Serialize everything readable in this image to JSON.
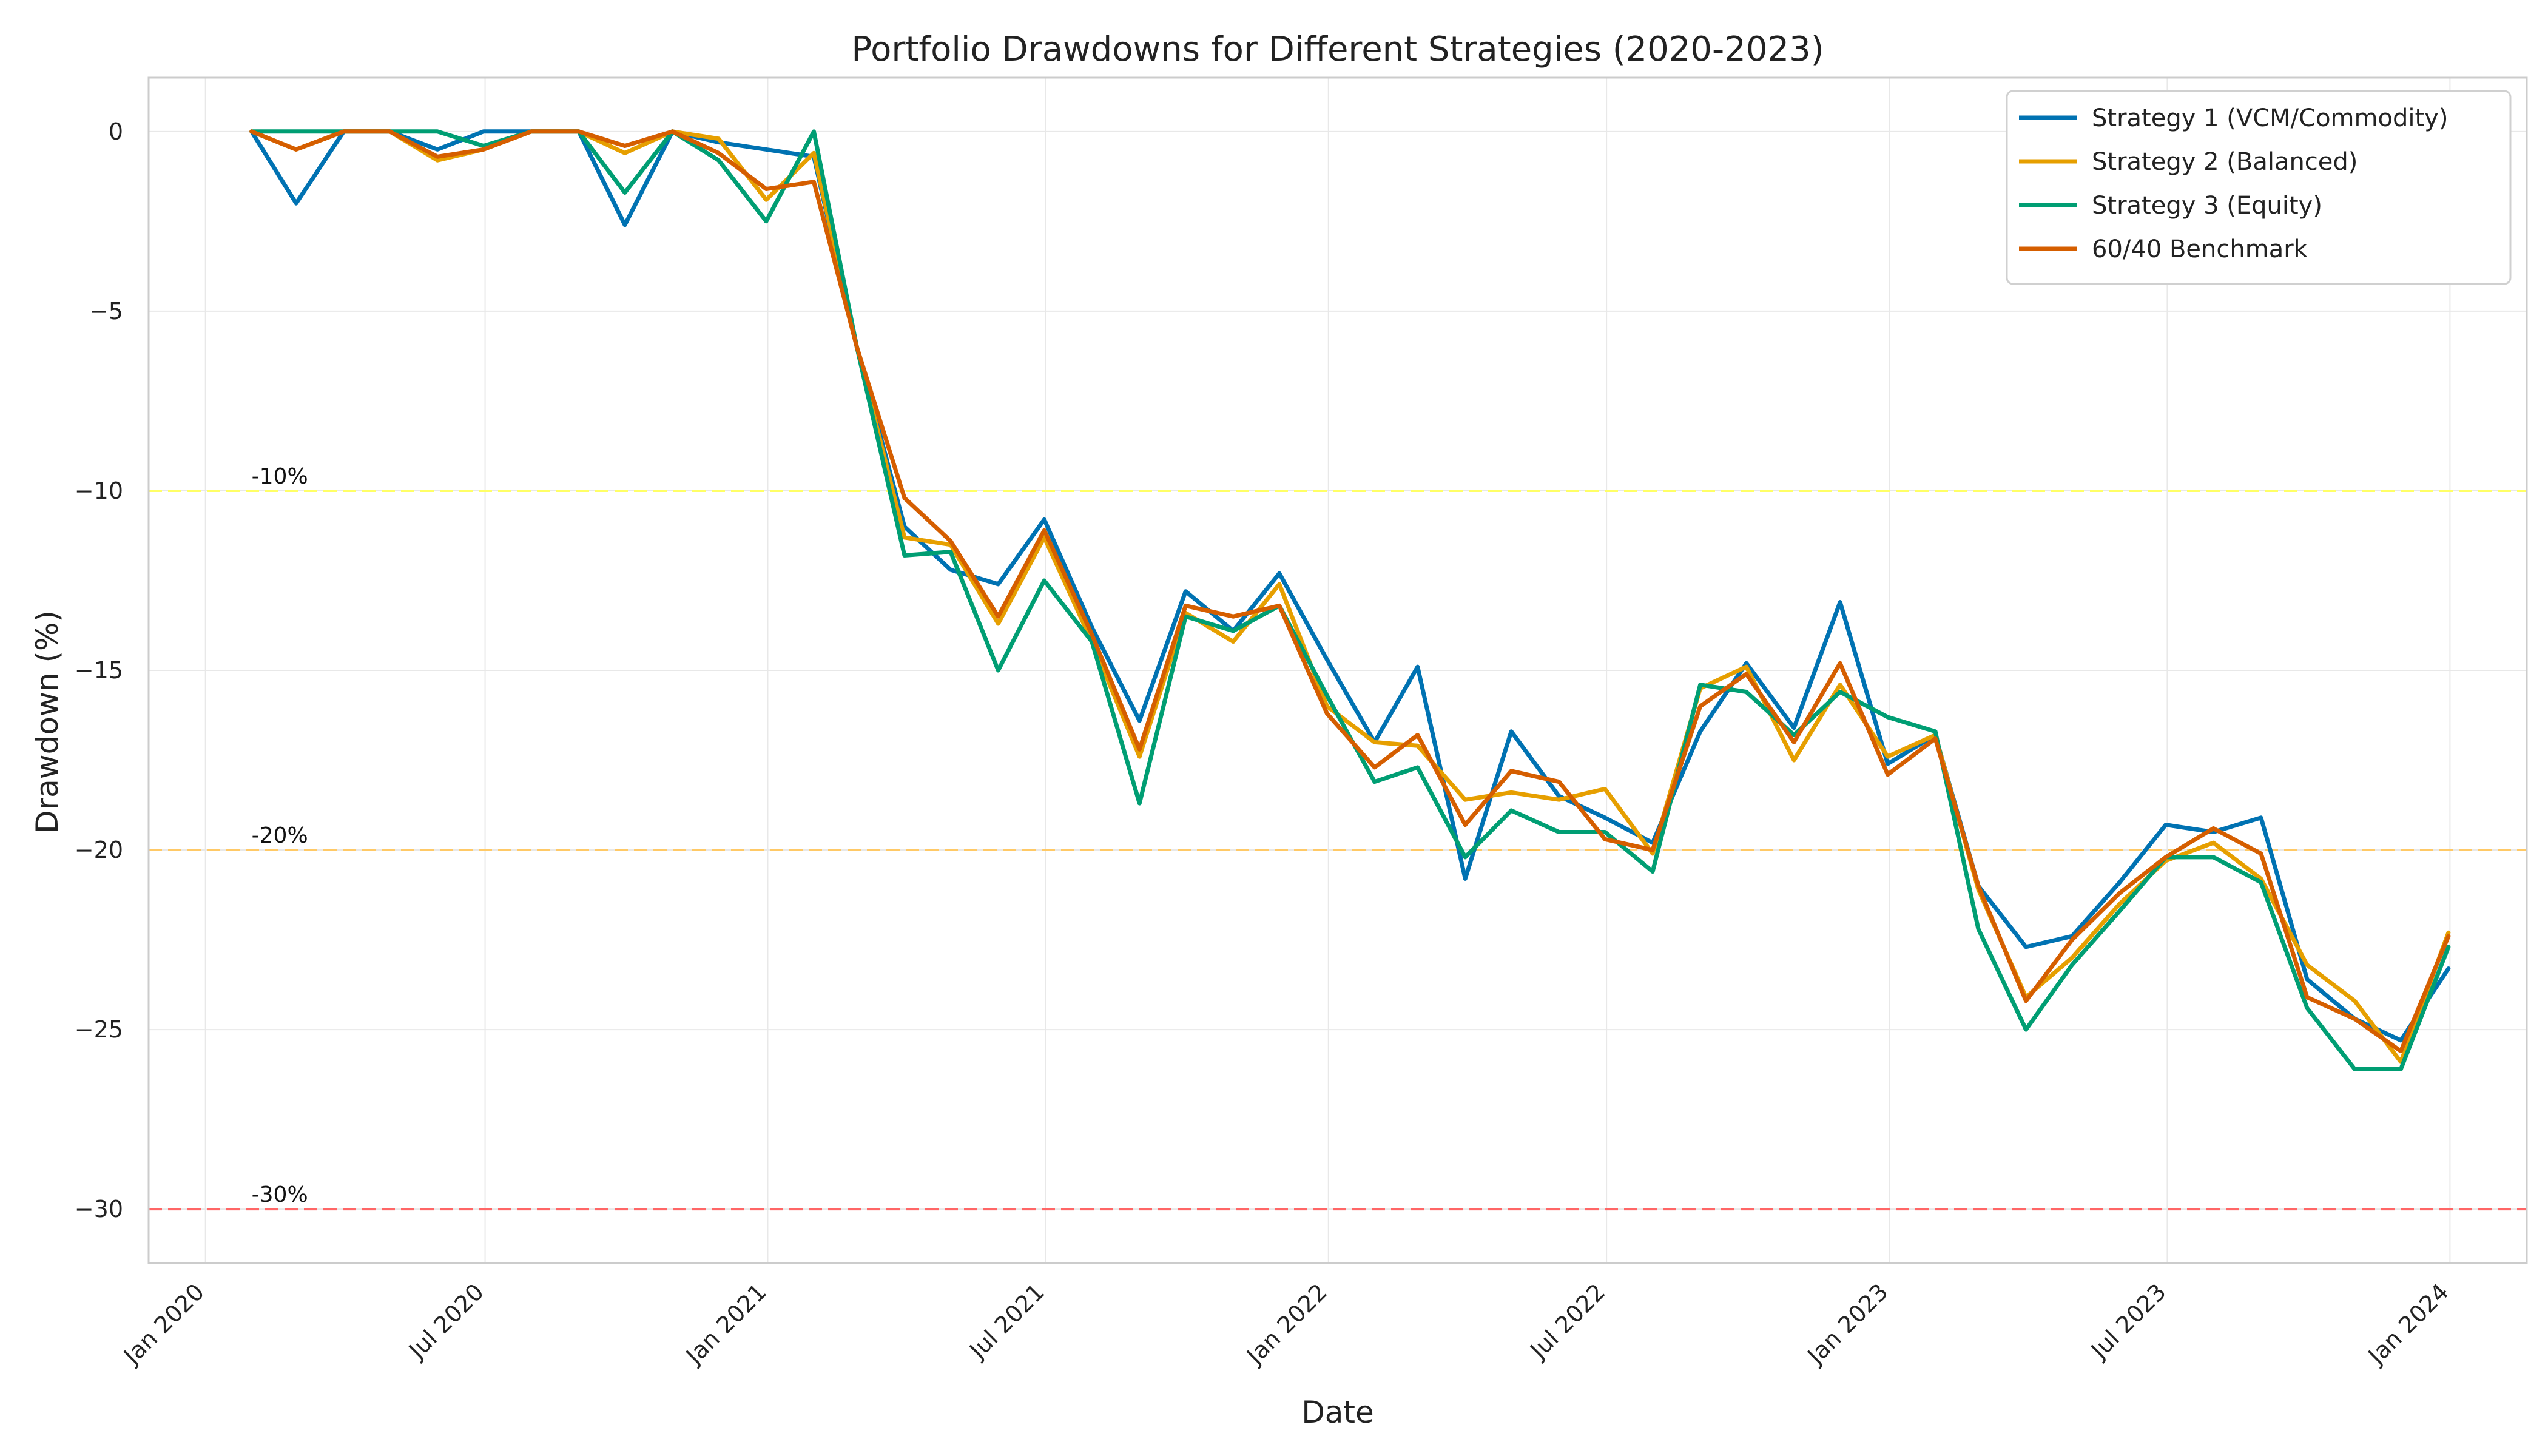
{
  "chart_data": {
    "type": "line",
    "title": "Portfolio Drawdowns for Different Strategies (2020-2023)",
    "xlabel": "Date",
    "ylabel": "Drawdown (%)",
    "x": [
      "2020-01-31",
      "2020-02-29",
      "2020-03-31",
      "2020-04-30",
      "2020-05-31",
      "2020-06-30",
      "2020-07-31",
      "2020-08-31",
      "2020-09-30",
      "2020-10-31",
      "2020-11-30",
      "2020-12-31",
      "2021-01-31",
      "2021-02-28",
      "2021-03-31",
      "2021-04-30",
      "2021-05-31",
      "2021-06-30",
      "2021-07-31",
      "2021-08-31",
      "2021-09-30",
      "2021-10-31",
      "2021-11-30",
      "2021-12-31",
      "2022-01-31",
      "2022-02-28",
      "2022-03-31",
      "2022-04-30",
      "2022-05-31",
      "2022-06-30",
      "2022-07-31",
      "2022-08-31",
      "2022-09-30",
      "2022-10-31",
      "2022-11-30",
      "2022-12-31",
      "2023-01-31",
      "2023-02-28",
      "2023-03-31",
      "2023-04-30",
      "2023-05-31",
      "2023-06-30",
      "2023-07-31",
      "2023-08-31",
      "2023-09-30",
      "2023-10-31",
      "2023-11-30",
      "2023-12-31"
    ],
    "series": [
      {
        "name": "Strategy 1 (VCM/Commodity)",
        "color": "#0072B2",
        "values": [
          0,
          -2.0,
          0,
          0,
          -0.5,
          0,
          0,
          0,
          -2.6,
          0,
          -0.3,
          -0.5,
          -0.7,
          -6.0,
          -11.0,
          -12.2,
          -12.6,
          -10.8,
          -13.8,
          -16.4,
          -12.8,
          -13.9,
          -12.3,
          -14.7,
          -17.0,
          -14.9,
          -20.8,
          -16.7,
          -18.5,
          -19.1,
          -19.8,
          -16.7,
          -14.8,
          -16.6,
          -13.1,
          -17.6,
          -16.8,
          -21.0,
          -22.7,
          -22.4,
          -20.9,
          -19.3,
          -19.5,
          -19.1,
          -23.6,
          -24.7,
          -25.3,
          -23.3
        ]
      },
      {
        "name": "Strategy 2 (Balanced)",
        "color": "#E69F00",
        "values": [
          0,
          -0.5,
          0,
          0,
          -0.8,
          -0.5,
          0,
          0,
          -0.6,
          0,
          -0.2,
          -1.9,
          -0.6,
          -6.0,
          -11.3,
          -11.5,
          -13.7,
          -11.3,
          -14.2,
          -17.4,
          -13.4,
          -14.2,
          -12.6,
          -16.0,
          -17.0,
          -17.1,
          -18.6,
          -18.4,
          -18.6,
          -18.3,
          -20.1,
          -15.5,
          -14.9,
          -17.5,
          -15.4,
          -17.4,
          -16.8,
          -21.1,
          -24.1,
          -23.0,
          -21.5,
          -20.3,
          -19.8,
          -20.8,
          -23.2,
          -24.2,
          -25.9,
          -22.3
        ]
      },
      {
        "name": "Strategy 3 (Equity)",
        "color": "#009E73",
        "values": [
          0,
          0,
          0,
          0,
          0,
          -0.4,
          0,
          0,
          -1.7,
          0,
          -0.8,
          -2.5,
          0,
          -6.0,
          -11.8,
          -11.7,
          -15.0,
          -12.5,
          -14.2,
          -18.7,
          -13.5,
          -13.9,
          -13.2,
          -15.7,
          -18.1,
          -17.7,
          -20.2,
          -18.9,
          -19.5,
          -19.5,
          -20.6,
          -15.4,
          -15.6,
          -16.8,
          -15.6,
          -16.3,
          -16.7,
          -22.2,
          -25.0,
          -23.2,
          -21.7,
          -20.2,
          -20.2,
          -20.9,
          -24.4,
          -26.1,
          -26.1,
          -22.7
        ]
      },
      {
        "name": "60/40 Benchmark",
        "color": "#D55E00",
        "values": [
          0,
          -0.5,
          0,
          0,
          -0.7,
          -0.5,
          0,
          0,
          -0.4,
          0,
          -0.6,
          -1.6,
          -1.4,
          -6.0,
          -10.2,
          -11.4,
          -13.5,
          -11.1,
          -14.0,
          -17.2,
          -13.2,
          -13.5,
          -13.2,
          -16.2,
          -17.7,
          -16.8,
          -19.3,
          -17.8,
          -18.1,
          -19.7,
          -20.0,
          -16.0,
          -15.1,
          -17.0,
          -14.8,
          -17.9,
          -16.9,
          -21.0,
          -24.2,
          -22.5,
          -21.2,
          -20.2,
          -19.4,
          -20.1,
          -24.1,
          -24.7,
          -25.6,
          -22.4
        ]
      }
    ],
    "reference_lines": [
      {
        "y": -10,
        "label": "-10%",
        "color": "#FFFF66"
      },
      {
        "y": -20,
        "label": "-20%",
        "color": "#FFC966"
      },
      {
        "y": -30,
        "label": "-30%",
        "color": "#FF6666"
      }
    ],
    "x_ticks": [
      {
        "date": "2020-01-01",
        "label": "Jan 2020"
      },
      {
        "date": "2020-07-01",
        "label": "Jul 2020"
      },
      {
        "date": "2021-01-01",
        "label": "Jan 2021"
      },
      {
        "date": "2021-07-01",
        "label": "Jul 2021"
      },
      {
        "date": "2022-01-01",
        "label": "Jan 2022"
      },
      {
        "date": "2022-07-01",
        "label": "Jul 2022"
      },
      {
        "date": "2023-01-01",
        "label": "Jan 2023"
      },
      {
        "date": "2023-07-01",
        "label": "Jul 2023"
      },
      {
        "date": "2024-01-01",
        "label": "Jan 2024"
      }
    ],
    "y_ticks": [
      0,
      -5,
      -10,
      -15,
      -20,
      -25,
      -30
    ],
    "xlim": [
      "2019-11-25",
      "2024-02-20"
    ],
    "ylim": [
      -31.5,
      1.5
    ],
    "grid": true,
    "legend_position": "top-right"
  }
}
